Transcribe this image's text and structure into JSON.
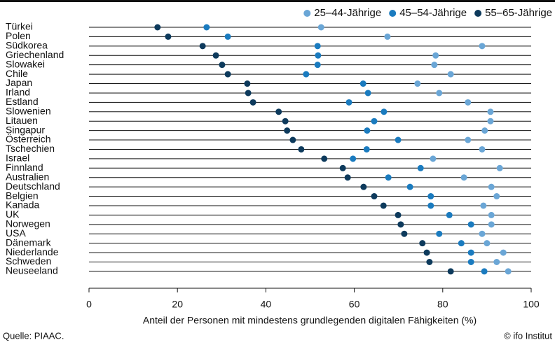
{
  "chart_data": {
    "type": "dot",
    "x_label": "Anteil der Personen mit mindestens grundlegenden digitalen Fähigkeiten (%)",
    "source": "Quelle: PIAAC.",
    "credit": "© ifo Institut",
    "categories": [
      "Türkei",
      "Polen",
      "Südkorea",
      "Griechenland",
      "Slowakei",
      "Chile",
      "Japan",
      "Irland",
      "Estland",
      "Slowenien",
      "Litauen",
      "Singapur",
      "Österreich",
      "Tschechien",
      "Israel",
      "Finnland",
      "Australien",
      "Deutschland",
      "Belgien",
      "Kanada",
      "UK",
      "Norwegen",
      "USA",
      "Dänemark",
      "Niederlande",
      "Schweden",
      "Neuseeland"
    ],
    "series": [
      {
        "name": "25–44-Jährige",
        "color": "#6aa6d6",
        "values": [
          52.5,
          67.5,
          88.9,
          78.4,
          78.1,
          81.8,
          74.3,
          79.2,
          85.7,
          90.8,
          90.8,
          89.5,
          85.7,
          88.9,
          77.8,
          92.9,
          84.8,
          91.0,
          92.2,
          89.2,
          91.0,
          91.0,
          88.9,
          90.0,
          93.7,
          92.2,
          94.8
        ]
      },
      {
        "name": "45–54-Jährige",
        "color": "#1a7bbf",
        "values": [
          26.6,
          31.4,
          51.7,
          51.8,
          51.7,
          49.1,
          62.0,
          63.1,
          58.8,
          66.7,
          64.5,
          62.9,
          69.9,
          62.8,
          59.7,
          75.0,
          67.7,
          72.6,
          77.3,
          77.3,
          81.5,
          86.4,
          79.2,
          84.2,
          86.4,
          86.4,
          89.4
        ]
      },
      {
        "name": "55–65-Jährige",
        "color": "#0d3a5c",
        "values": [
          15.5,
          17.9,
          25.7,
          28.7,
          30.1,
          31.4,
          35.8,
          36.0,
          37.1,
          42.9,
          44.4,
          44.8,
          46.1,
          48.0,
          53.2,
          57.4,
          58.5,
          62.1,
          64.5,
          66.6,
          69.9,
          70.5,
          71.3,
          75.4,
          76.4,
          77.0,
          81.8
        ]
      }
    ],
    "xlim": [
      0,
      100
    ],
    "xticks": [
      0,
      20,
      40,
      60,
      80,
      100
    ],
    "legend": "top-right"
  }
}
